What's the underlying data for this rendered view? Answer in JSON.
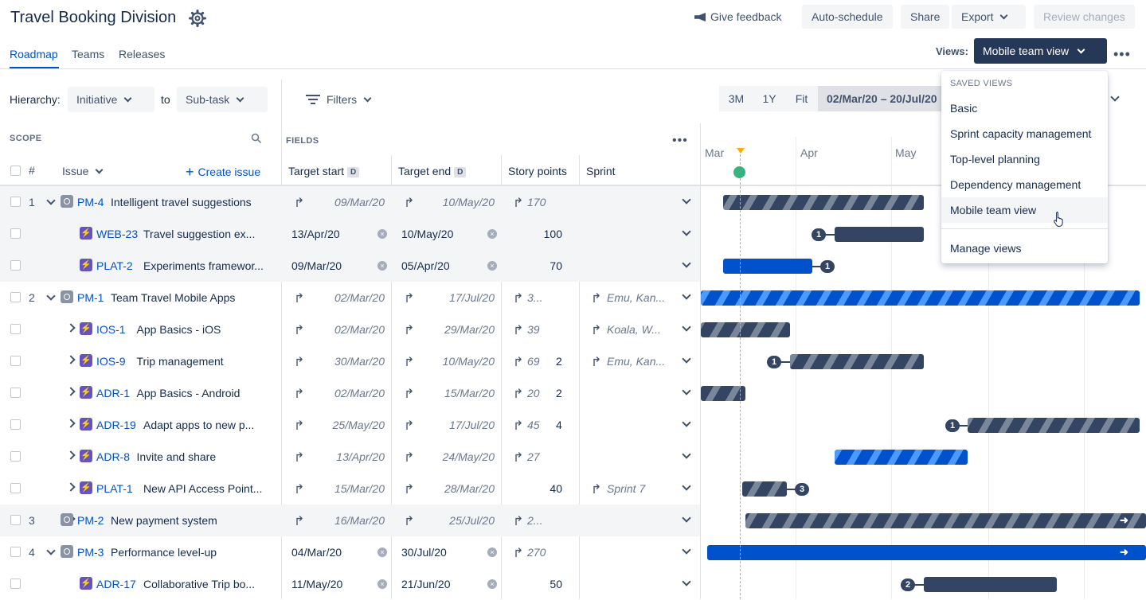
{
  "header": {
    "title": "Travel Booking Division",
    "give_feedback": "Give feedback",
    "auto_schedule": "Auto-schedule",
    "share": "Share",
    "export": "Export",
    "review_changes": "Review changes"
  },
  "tabs": [
    "Roadmap",
    "Teams",
    "Releases"
  ],
  "views": {
    "label": "Views:",
    "current": "Mobile team view"
  },
  "toolbar": {
    "hierarchy_label": "Hierarchy:",
    "hierarchy_from": "Initiative",
    "to_label": "to",
    "hierarchy_to": "Sub-task",
    "filters": "Filters",
    "zoom": [
      "3M",
      "1Y",
      "Fit"
    ],
    "date_range": "02/Mar/20 – 20/Jul/20"
  },
  "scope": {
    "label": "SCOPE",
    "hash": "#",
    "issue": "Issue",
    "create_issue": "Create issue"
  },
  "fields": {
    "label": "FIELDS",
    "target_start": "Target start",
    "target_end": "Target end",
    "badge": "D",
    "story_points": "Story points",
    "sprint": "Sprint"
  },
  "timeline_months": [
    "Mar",
    "Apr",
    "May"
  ],
  "rows": [
    {
      "num": "1",
      "key": "PM-4",
      "summary": "Intelligent travel suggestions",
      "start": "09/Mar/20",
      "end": "10/May/20",
      "points": "170",
      "sprint": ""
    },
    {
      "num": "",
      "key": "WEB-23",
      "summary": "Travel suggestion ex...",
      "start": "13/Apr/20",
      "end": "10/May/20",
      "points": "100",
      "sprint": ""
    },
    {
      "num": "",
      "key": "PLAT-2",
      "summary": "Experiments framewor...",
      "start": "09/Mar/20",
      "end": "05/Apr/20",
      "points": "70",
      "sprint": ""
    },
    {
      "num": "2",
      "key": "PM-1",
      "summary": "Team Travel Mobile Apps",
      "start": "02/Mar/20",
      "end": "17/Jul/20",
      "points": "3...",
      "sprint": "Emu, Kan..."
    },
    {
      "num": "",
      "key": "IOS-1",
      "summary": "App Basics - iOS",
      "start": "02/Mar/20",
      "end": "29/Mar/20",
      "points": "39",
      "sprint": "Koala, W..."
    },
    {
      "num": "",
      "key": "IOS-9",
      "summary": "Trip management",
      "start": "30/Mar/20",
      "end": "10/May/20",
      "points": "69",
      "points2": "2",
      "sprint": "Emu, Kan..."
    },
    {
      "num": "",
      "key": "ADR-1",
      "summary": "App Basics - Android",
      "start": "02/Mar/20",
      "end": "15/Mar/20",
      "points": "20",
      "points2": "2",
      "sprint": ""
    },
    {
      "num": "",
      "key": "ADR-19",
      "summary": "Adapt apps to new p...",
      "start": "25/May/20",
      "end": "17/Jul/20",
      "points": "45",
      "points2": "4",
      "sprint": ""
    },
    {
      "num": "",
      "key": "ADR-8",
      "summary": "Invite and share",
      "start": "13/Apr/20",
      "end": "24/May/20",
      "points": "27",
      "sprint": ""
    },
    {
      "num": "",
      "key": "PLAT-1",
      "summary": "New API Access Point...",
      "start": "15/Mar/20",
      "end": "28/Mar/20",
      "points": "40",
      "sprint": "Sprint 7"
    },
    {
      "num": "3",
      "key": "PM-2",
      "summary": "New payment system",
      "start": "16/Mar/20",
      "end": "25/Jul/20",
      "points": "2...",
      "sprint": ""
    },
    {
      "num": "4",
      "key": "PM-3",
      "summary": "Performance level-up",
      "start": "04/Mar/20",
      "end": "30/Jul/20",
      "points": "270",
      "sprint": ""
    },
    {
      "num": "",
      "key": "ADR-17",
      "summary": "Collaborative Trip bo...",
      "start": "11/May/20",
      "end": "21/Jun/20",
      "points": "50",
      "sprint": ""
    }
  ],
  "dependency_badges": [
    "1",
    "1",
    "1",
    "1",
    "3",
    "2"
  ],
  "dropdown": {
    "header": "SAVED VIEWS",
    "items": [
      "Basic",
      "Sprint capacity management",
      "Top-level planning",
      "Dependency management",
      "Mobile team view"
    ],
    "manage": "Manage views"
  },
  "colors": {
    "accent": "#0052cc",
    "dark_bar": "#344563",
    "today": "#ffab00",
    "today_dot": "#36b37e",
    "epic": "#6554c0"
  }
}
